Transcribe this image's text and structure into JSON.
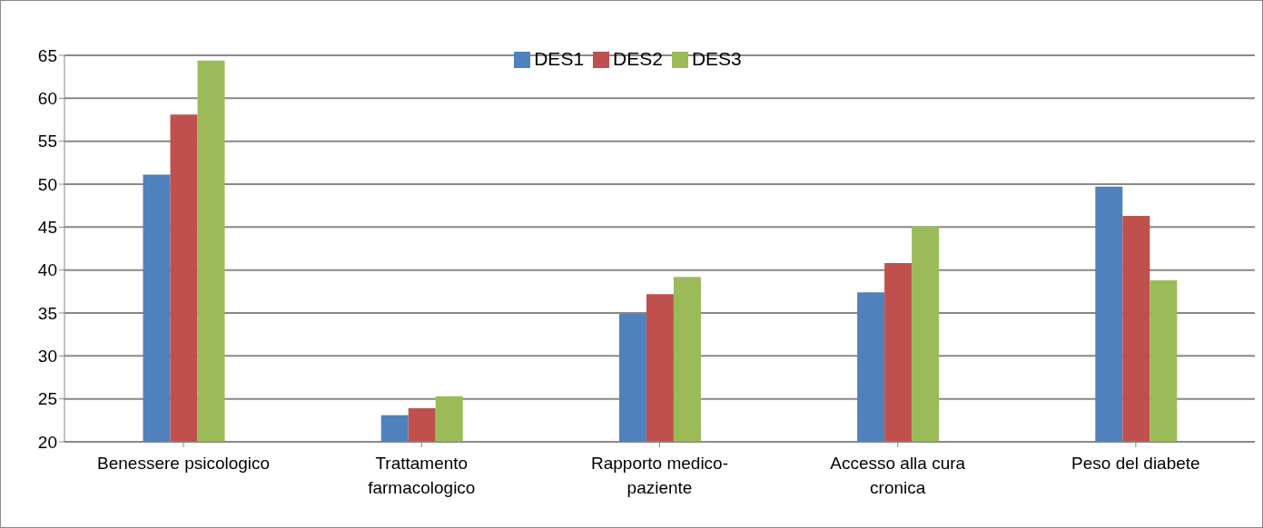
{
  "chart_data": {
    "type": "bar",
    "categories": [
      "Benessere psicologico",
      "Trattamento farmacologico",
      "Rapporto medico-paziente",
      "Accesso alla cura cronica",
      "Peso del diabete"
    ],
    "series": [
      {
        "name": "DES1",
        "color": "#4f81bd",
        "values": [
          51.1,
          23.1,
          34.9,
          37.4,
          49.7
        ]
      },
      {
        "name": "DES2",
        "color": "#c0504d",
        "values": [
          58.1,
          23.9,
          37.2,
          40.8,
          46.3
        ]
      },
      {
        "name": "DES3",
        "color": "#9bbb59",
        "values": [
          64.4,
          25.3,
          39.2,
          45.1,
          38.8
        ]
      }
    ],
    "ylim": [
      20,
      65
    ],
    "yticks": [
      20,
      25,
      30,
      35,
      40,
      45,
      50,
      55,
      60,
      65
    ],
    "grid": "y",
    "legend": "top"
  }
}
